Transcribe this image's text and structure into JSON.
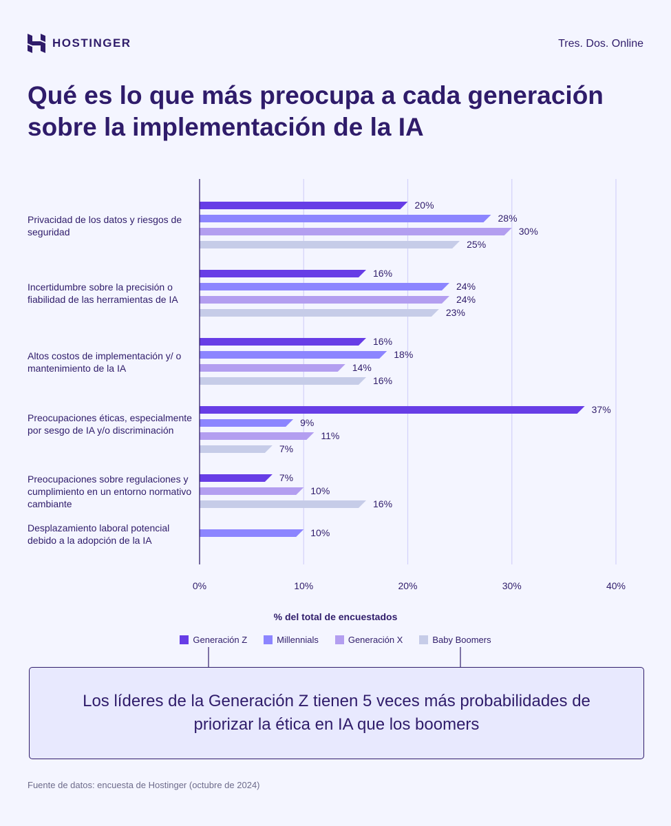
{
  "header": {
    "brand": "HOSTINGER",
    "site": "Tres. Dos. Online"
  },
  "colors": {
    "text": "#2F1C6A",
    "grid": "#D3D0FA",
    "axis": "#2F1C6A"
  },
  "chart_data": {
    "type": "bar",
    "orientation": "horizontal",
    "title": "Qué es lo que más preocupa a cada generación sobre la implementación de la IA",
    "xlabel": "% del total de encuestados",
    "xlim": [
      0,
      40
    ],
    "xticks": [
      "0%",
      "10%",
      "20%",
      "30%",
      "40%"
    ],
    "grid": true,
    "legend_placement": "bottom",
    "series": [
      {
        "name": "Generación Z",
        "color": "#673DE6",
        "values": [
          20,
          16,
          16,
          37,
          7,
          null
        ]
      },
      {
        "name": "Millennials",
        "color": "#8C85FF",
        "values": [
          28,
          24,
          18,
          9,
          null,
          10
        ]
      },
      {
        "name": "Generación X",
        "color": "#B39EF0",
        "values": [
          30,
          24,
          14,
          11,
          10,
          null
        ]
      },
      {
        "name": "Baby Boomers",
        "color": "#C6CCE8",
        "values": [
          25,
          23,
          16,
          7,
          16,
          null
        ]
      }
    ],
    "categories": [
      "Privacidad de los datos y riesgos de seguridad",
      "Incertidumbre sobre la precisión o fiabilidad de las herramientas de IA",
      "Altos costos de implementación y/ o mantenimiento de la IA",
      "Preocupaciones éticas, especialmente por sesgo de IA y/o discriminación",
      "Preocupaciones sobre regulaciones y cumplimiento en un entorno normativo cambiante",
      "Desplazamiento laboral potencial debido a la adopción de la IA"
    ]
  },
  "callout": "Los líderes de la Generación Z tienen 5 veces más probabilidades de priorizar la ética en IA que los boomers",
  "source": "Fuente de datos: encuesta de Hostinger (octubre de 2024)"
}
